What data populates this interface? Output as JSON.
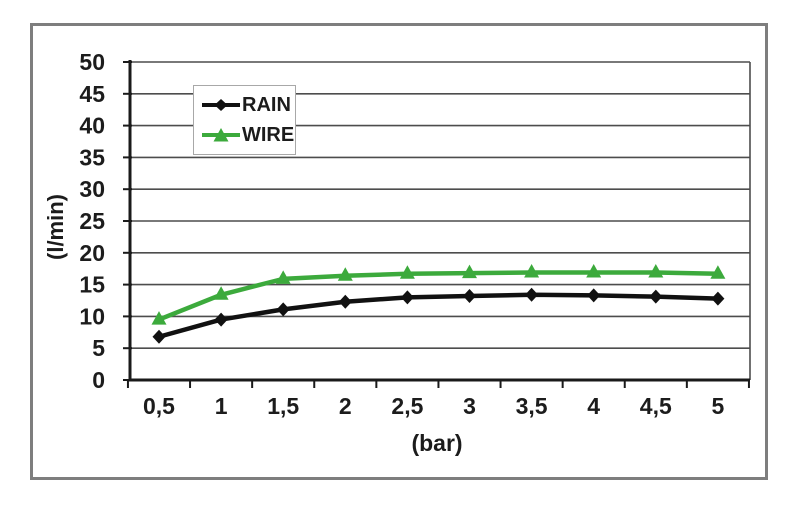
{
  "figure": {
    "background": "#ffffff",
    "frame_border_color": "#7e7e7e",
    "legend_border_color": "#a8a8a8"
  },
  "chart_data": {
    "type": "line",
    "title": "",
    "xlabel": "(bar)",
    "ylabel": "(l/min)",
    "categories": [
      "0,5",
      "1",
      "1,5",
      "2",
      "2,5",
      "3",
      "3,5",
      "4",
      "4,5",
      "5"
    ],
    "x_values": [
      0.5,
      1,
      1.5,
      2,
      2.5,
      3,
      3.5,
      4,
      4.5,
      5
    ],
    "ylim": [
      0,
      50
    ],
    "ytick_step": 5,
    "yticks": [
      "0",
      "5",
      "10",
      "15",
      "20",
      "25",
      "30",
      "35",
      "40",
      "45",
      "50"
    ],
    "grid": "horizontal",
    "gridline_color": "#4d4d4d",
    "axis_color": "#1a1a1a",
    "legend_position": "inside-top-left",
    "series": [
      {
        "name": "RAIN",
        "marker": "diamond",
        "color": "#111111",
        "values": [
          6.8,
          9.5,
          11.1,
          12.3,
          13.0,
          13.2,
          13.4,
          13.3,
          13.1,
          12.8
        ]
      },
      {
        "name": "WIRE",
        "marker": "triangle",
        "color": "#3caa3c",
        "values": [
          9.5,
          13.4,
          15.9,
          16.4,
          16.7,
          16.8,
          16.9,
          16.9,
          16.9,
          16.7
        ]
      }
    ]
  }
}
